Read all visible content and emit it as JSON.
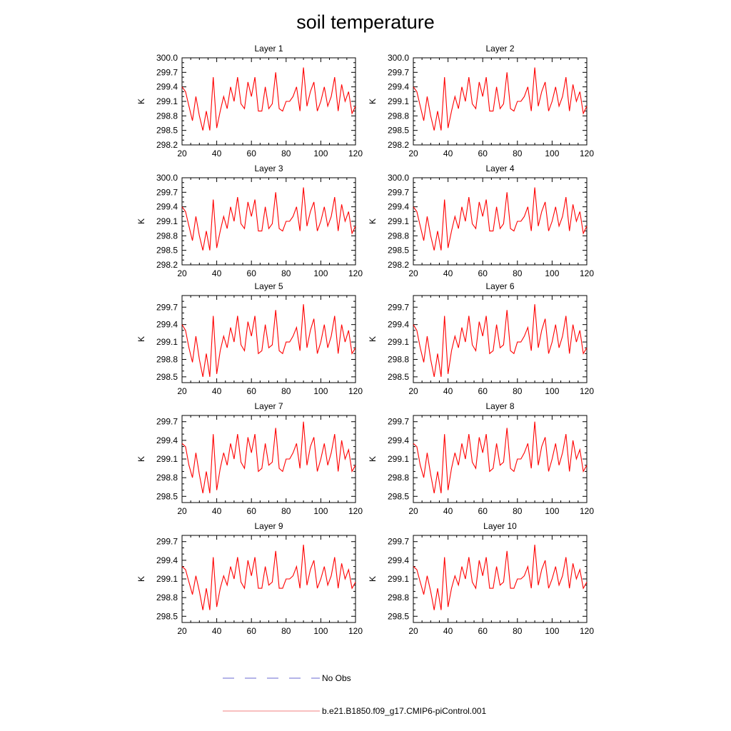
{
  "page_title": "soil temperature",
  "legend": {
    "items": [
      {
        "label": "No Obs",
        "color": "#6a6ad0",
        "style": "dashed"
      },
      {
        "label": "b.e21.B1850.f09_g17.CMIP6-piControl.001",
        "color": "#f08080",
        "style": "solid"
      }
    ]
  },
  "colors": {
    "series": "#ff0000",
    "axis": "#000000"
  },
  "chart_data": {
    "type": "line",
    "x": [
      20,
      22,
      24,
      26,
      28,
      30,
      32,
      34,
      36,
      38,
      40,
      42,
      44,
      46,
      48,
      50,
      52,
      54,
      56,
      58,
      60,
      62,
      64,
      66,
      68,
      70,
      72,
      74,
      76,
      78,
      80,
      82,
      84,
      86,
      88,
      90,
      92,
      94,
      96,
      98,
      100,
      102,
      104,
      106,
      108,
      110,
      112,
      114,
      116,
      118,
      120
    ],
    "panels": [
      {
        "title": "Layer 1",
        "ylabel": "K",
        "xlim": [
          20,
          120
        ],
        "ylim": [
          298.2,
          300.0
        ],
        "yticks": [
          "298.2",
          "298.5",
          "298.8",
          "299.1",
          "299.4",
          "299.7",
          "300.0"
        ],
        "xticks": [
          "20",
          "40",
          "60",
          "80",
          "100",
          "120"
        ],
        "series": [
          {
            "name": "b.e21.B1850.f09_g17.CMIP6-piControl.001",
            "values": [
              299.4,
              299.3,
              299.0,
              298.7,
              299.2,
              298.8,
              298.5,
              298.9,
              298.5,
              299.6,
              298.55,
              298.9,
              299.2,
              298.95,
              299.4,
              299.1,
              299.6,
              299.05,
              298.95,
              299.5,
              299.2,
              299.6,
              298.9,
              298.9,
              299.4,
              298.95,
              299.05,
              299.7,
              298.95,
              298.9,
              299.1,
              299.1,
              299.2,
              299.4,
              298.9,
              299.8,
              299.0,
              299.3,
              299.5,
              298.9,
              299.1,
              299.4,
              299.0,
              299.2,
              299.6,
              298.9,
              299.45,
              299.1,
              299.3,
              298.85,
              299.0
            ]
          }
        ]
      },
      {
        "title": "Layer 2",
        "ylabel": "K",
        "xlim": [
          20,
          120
        ],
        "ylim": [
          298.2,
          300.0
        ],
        "yticks": [
          "298.2",
          "298.5",
          "298.8",
          "299.1",
          "299.4",
          "299.7",
          "300.0"
        ],
        "xticks": [
          "20",
          "40",
          "60",
          "80",
          "100",
          "120"
        ],
        "series": [
          {
            "name": "b.e21.B1850.f09_g17.CMIP6-piControl.001",
            "values": [
              299.4,
              299.3,
              299.0,
              298.7,
              299.2,
              298.8,
              298.5,
              298.9,
              298.5,
              299.6,
              298.55,
              298.9,
              299.2,
              298.95,
              299.4,
              299.1,
              299.6,
              299.05,
              298.95,
              299.5,
              299.2,
              299.6,
              298.9,
              298.9,
              299.4,
              298.95,
              299.05,
              299.7,
              298.95,
              298.9,
              299.1,
              299.1,
              299.2,
              299.4,
              298.9,
              299.8,
              299.0,
              299.3,
              299.5,
              298.9,
              299.1,
              299.4,
              299.0,
              299.2,
              299.6,
              298.9,
              299.45,
              299.1,
              299.3,
              298.85,
              299.0
            ]
          }
        ]
      },
      {
        "title": "Layer 3",
        "ylabel": "K",
        "xlim": [
          20,
          120
        ],
        "ylim": [
          298.2,
          300.0
        ],
        "yticks": [
          "298.2",
          "298.5",
          "298.8",
          "299.1",
          "299.4",
          "299.7",
          "300.0"
        ],
        "xticks": [
          "20",
          "40",
          "60",
          "80",
          "100",
          "120"
        ],
        "series": [
          {
            "name": "b.e21.B1850.f09_g17.CMIP6-piControl.001",
            "values": [
              299.4,
              299.3,
              299.0,
              298.7,
              299.2,
              298.8,
              298.5,
              298.9,
              298.5,
              299.55,
              298.55,
              298.9,
              299.2,
              298.95,
              299.4,
              299.1,
              299.6,
              299.05,
              298.95,
              299.5,
              299.2,
              299.55,
              298.9,
              298.9,
              299.4,
              298.95,
              299.05,
              299.7,
              298.95,
              298.9,
              299.1,
              299.1,
              299.2,
              299.4,
              298.9,
              299.8,
              299.0,
              299.3,
              299.5,
              298.9,
              299.1,
              299.4,
              299.0,
              299.2,
              299.6,
              298.9,
              299.45,
              299.1,
              299.3,
              298.85,
              299.0
            ]
          }
        ]
      },
      {
        "title": "Layer 4",
        "ylabel": "K",
        "xlim": [
          20,
          120
        ],
        "ylim": [
          298.2,
          300.0
        ],
        "yticks": [
          "298.2",
          "298.5",
          "298.8",
          "299.1",
          "299.4",
          "299.7",
          "300.0"
        ],
        "xticks": [
          "20",
          "40",
          "60",
          "80",
          "100",
          "120"
        ],
        "series": [
          {
            "name": "b.e21.B1850.f09_g17.CMIP6-piControl.001",
            "values": [
              299.4,
              299.3,
              299.0,
              298.7,
              299.2,
              298.8,
              298.5,
              298.9,
              298.5,
              299.55,
              298.55,
              298.9,
              299.2,
              298.95,
              299.4,
              299.1,
              299.6,
              299.05,
              298.95,
              299.5,
              299.2,
              299.55,
              298.9,
              298.9,
              299.4,
              298.95,
              299.05,
              299.7,
              298.95,
              298.9,
              299.1,
              299.1,
              299.2,
              299.4,
              298.9,
              299.8,
              299.0,
              299.3,
              299.5,
              298.9,
              299.1,
              299.4,
              299.0,
              299.2,
              299.6,
              298.9,
              299.45,
              299.1,
              299.3,
              298.85,
              299.0
            ]
          }
        ]
      },
      {
        "title": "Layer 5",
        "ylabel": "K",
        "xlim": [
          20,
          120
        ],
        "ylim": [
          298.4,
          299.9
        ],
        "yticks": [
          "298.5",
          "298.8",
          "299.1",
          "299.4",
          "299.7"
        ],
        "xticks": [
          "20",
          "40",
          "60",
          "80",
          "100",
          "120"
        ],
        "series": [
          {
            "name": "b.e21.B1850.f09_g17.CMIP6-piControl.001",
            "values": [
              299.4,
              299.3,
              299.0,
              298.75,
              299.2,
              298.8,
              298.5,
              298.9,
              298.5,
              299.55,
              298.55,
              298.95,
              299.2,
              299.0,
              299.35,
              299.1,
              299.55,
              299.05,
              298.95,
              299.45,
              299.2,
              299.55,
              298.9,
              298.95,
              299.4,
              299.0,
              299.05,
              299.65,
              298.95,
              298.9,
              299.1,
              299.1,
              299.2,
              299.35,
              298.95,
              299.75,
              299.0,
              299.3,
              299.5,
              298.9,
              299.1,
              299.4,
              299.0,
              299.2,
              299.55,
              298.9,
              299.4,
              299.1,
              299.3,
              298.9,
              299.0
            ]
          }
        ]
      },
      {
        "title": "Layer 6",
        "ylabel": "K",
        "xlim": [
          20,
          120
        ],
        "ylim": [
          298.4,
          299.9
        ],
        "yticks": [
          "298.5",
          "298.8",
          "299.1",
          "299.4",
          "299.7"
        ],
        "xticks": [
          "20",
          "40",
          "60",
          "80",
          "100",
          "120"
        ],
        "series": [
          {
            "name": "b.e21.B1850.f09_g17.CMIP6-piControl.001",
            "values": [
              299.4,
              299.3,
              299.0,
              298.75,
              299.2,
              298.8,
              298.5,
              298.9,
              298.5,
              299.55,
              298.55,
              298.95,
              299.2,
              299.0,
              299.35,
              299.1,
              299.55,
              299.05,
              298.95,
              299.45,
              299.2,
              299.55,
              298.9,
              298.95,
              299.4,
              299.0,
              299.05,
              299.65,
              298.95,
              298.9,
              299.1,
              299.1,
              299.2,
              299.35,
              298.95,
              299.75,
              299.0,
              299.3,
              299.5,
              298.9,
              299.1,
              299.4,
              299.0,
              299.2,
              299.55,
              298.9,
              299.4,
              299.1,
              299.3,
              298.9,
              299.0
            ]
          }
        ]
      },
      {
        "title": "Layer 7",
        "ylabel": "K",
        "xlim": [
          20,
          120
        ],
        "ylim": [
          298.4,
          299.8
        ],
        "yticks": [
          "298.5",
          "298.8",
          "299.1",
          "299.4",
          "299.7"
        ],
        "xticks": [
          "20",
          "40",
          "60",
          "80",
          "100",
          "120"
        ],
        "series": [
          {
            "name": "b.e21.B1850.f09_g17.CMIP6-piControl.001",
            "values": [
              299.35,
              299.3,
              299.0,
              298.8,
              299.2,
              298.85,
              298.55,
              298.9,
              298.55,
              299.5,
              298.6,
              298.95,
              299.2,
              299.0,
              299.35,
              299.1,
              299.5,
              299.05,
              298.95,
              299.45,
              299.2,
              299.5,
              298.9,
              298.95,
              299.35,
              299.0,
              299.05,
              299.6,
              298.95,
              298.9,
              299.1,
              299.1,
              299.2,
              299.35,
              298.95,
              299.7,
              299.0,
              299.3,
              299.45,
              298.9,
              299.1,
              299.35,
              299.0,
              299.2,
              299.5,
              298.9,
              299.4,
              299.1,
              299.25,
              298.9,
              299.0
            ]
          }
        ]
      },
      {
        "title": "Layer 8",
        "ylabel": "K",
        "xlim": [
          20,
          120
        ],
        "ylim": [
          298.4,
          299.8
        ],
        "yticks": [
          "298.5",
          "298.8",
          "299.1",
          "299.4",
          "299.7"
        ],
        "xticks": [
          "20",
          "40",
          "60",
          "80",
          "100",
          "120"
        ],
        "series": [
          {
            "name": "b.e21.B1850.f09_g17.CMIP6-piControl.001",
            "values": [
              299.35,
              299.3,
              299.0,
              298.8,
              299.2,
              298.85,
              298.55,
              298.9,
              298.55,
              299.5,
              298.6,
              298.95,
              299.2,
              299.0,
              299.35,
              299.1,
              299.5,
              299.05,
              298.95,
              299.45,
              299.2,
              299.5,
              298.9,
              298.95,
              299.35,
              299.0,
              299.05,
              299.6,
              298.95,
              298.9,
              299.1,
              299.1,
              299.2,
              299.35,
              298.95,
              299.7,
              299.0,
              299.3,
              299.45,
              298.9,
              299.1,
              299.35,
              299.0,
              299.2,
              299.5,
              298.9,
              299.4,
              299.1,
              299.25,
              298.9,
              299.0
            ]
          }
        ]
      },
      {
        "title": "Layer 9",
        "ylabel": "K",
        "xlim": [
          20,
          120
        ],
        "ylim": [
          298.4,
          299.8
        ],
        "yticks": [
          "298.5",
          "298.8",
          "299.1",
          "299.4",
          "299.7"
        ],
        "xticks": [
          "20",
          "40",
          "60",
          "80",
          "100",
          "120"
        ],
        "series": [
          {
            "name": "b.e21.B1850.f09_g17.CMIP6-piControl.001",
            "values": [
              299.3,
              299.25,
              299.05,
              298.85,
              299.15,
              298.9,
              298.6,
              298.95,
              298.6,
              299.45,
              298.65,
              298.95,
              299.15,
              299.0,
              299.3,
              299.1,
              299.45,
              299.05,
              298.95,
              299.4,
              299.15,
              299.45,
              298.95,
              298.95,
              299.3,
              299.0,
              299.05,
              299.55,
              298.95,
              298.95,
              299.1,
              299.1,
              299.15,
              299.3,
              298.95,
              299.65,
              299.0,
              299.25,
              299.4,
              298.95,
              299.1,
              299.3,
              299.0,
              299.15,
              299.45,
              298.95,
              299.35,
              299.1,
              299.25,
              298.95,
              299.05
            ]
          }
        ]
      },
      {
        "title": "Layer 10",
        "ylabel": "K",
        "xlim": [
          20,
          120
        ],
        "ylim": [
          298.4,
          299.8
        ],
        "yticks": [
          "298.5",
          "298.8",
          "299.1",
          "299.4",
          "299.7"
        ],
        "xticks": [
          "20",
          "40",
          "60",
          "80",
          "100",
          "120"
        ],
        "series": [
          {
            "name": "b.e21.B1850.f09_g17.CMIP6-piControl.001",
            "values": [
              299.3,
              299.25,
              299.05,
              298.85,
              299.15,
              298.9,
              298.6,
              298.95,
              298.6,
              299.45,
              298.65,
              298.95,
              299.15,
              299.0,
              299.3,
              299.1,
              299.45,
              299.05,
              298.95,
              299.4,
              299.15,
              299.45,
              298.95,
              298.95,
              299.3,
              299.0,
              299.05,
              299.55,
              298.95,
              298.95,
              299.1,
              299.1,
              299.15,
              299.3,
              298.95,
              299.65,
              299.0,
              299.25,
              299.4,
              298.95,
              299.1,
              299.3,
              299.0,
              299.15,
              299.45,
              298.95,
              299.35,
              299.1,
              299.25,
              298.95,
              299.05
            ]
          }
        ]
      }
    ]
  }
}
